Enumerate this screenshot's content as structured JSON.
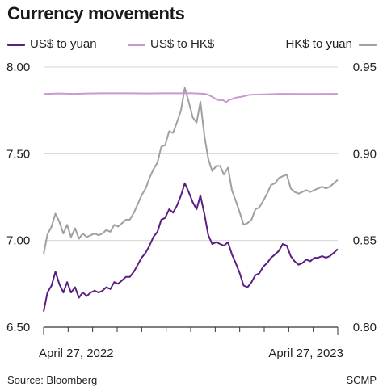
{
  "title": "Currency movements",
  "legend": [
    {
      "label": "US$ to yuan",
      "color": "#5b1f82"
    },
    {
      "label": "US$ to HK$",
      "color": "#c99ad0"
    },
    {
      "label": "HK$ to yuan",
      "color": "#a0a0a0"
    }
  ],
  "footer": {
    "source": "Source: Bloomberg",
    "credit": "SCMP"
  },
  "chart_data": {
    "type": "line",
    "x_labels": [
      "April 27, 2022",
      "April 27, 2023"
    ],
    "left_axis": {
      "ticks": [
        "8.00",
        "7.50",
        "7.00",
        "6.50"
      ],
      "ylim": [
        6.5,
        8.0
      ]
    },
    "right_axis": {
      "ticks": [
        "0.95",
        "0.90",
        "0.85",
        "0.80"
      ],
      "ylim": [
        0.8,
        0.95
      ]
    },
    "series": [
      {
        "name": "US$ to yuan",
        "axis": "left",
        "color": "#5b1f82",
        "x": [
          0,
          0.013,
          0.027,
          0.04,
          0.053,
          0.067,
          0.08,
          0.093,
          0.107,
          0.12,
          0.133,
          0.147,
          0.16,
          0.173,
          0.187,
          0.2,
          0.213,
          0.227,
          0.24,
          0.253,
          0.267,
          0.28,
          0.293,
          0.307,
          0.32,
          0.333,
          0.347,
          0.36,
          0.373,
          0.387,
          0.4,
          0.413,
          0.427,
          0.44,
          0.453,
          0.467,
          0.48,
          0.493,
          0.507,
          0.52,
          0.533,
          0.547,
          0.56,
          0.573,
          0.587,
          0.6,
          0.613,
          0.627,
          0.64,
          0.653,
          0.667,
          0.68,
          0.693,
          0.707,
          0.72,
          0.733,
          0.747,
          0.76,
          0.773,
          0.787,
          0.8,
          0.813,
          0.827,
          0.84,
          0.853,
          0.867,
          0.88,
          0.893,
          0.907,
          0.92,
          0.933,
          0.947,
          0.96,
          0.973,
          0.987,
          1
        ],
        "values": [
          6.59,
          6.7,
          6.74,
          6.82,
          6.75,
          6.7,
          6.76,
          6.7,
          6.73,
          6.67,
          6.7,
          6.68,
          6.7,
          6.71,
          6.7,
          6.71,
          6.73,
          6.72,
          6.76,
          6.75,
          6.77,
          6.79,
          6.79,
          6.82,
          6.86,
          6.9,
          6.93,
          6.97,
          7.02,
          7.05,
          7.12,
          7.13,
          7.18,
          7.16,
          7.2,
          7.26,
          7.33,
          7.28,
          7.22,
          7.18,
          7.26,
          7.15,
          7.03,
          6.98,
          6.99,
          6.98,
          6.97,
          6.99,
          6.92,
          6.87,
          6.81,
          6.74,
          6.73,
          6.76,
          6.8,
          6.81,
          6.85,
          6.87,
          6.9,
          6.92,
          6.94,
          6.98,
          6.97,
          6.91,
          6.88,
          6.86,
          6.87,
          6.89,
          6.88,
          6.9,
          6.9,
          6.91,
          6.9,
          6.91,
          6.93,
          6.95
        ]
      },
      {
        "name": "US$ to HK$",
        "axis": "left",
        "color": "#c99ad0",
        "x": [
          0,
          0.05,
          0.1,
          0.15,
          0.2,
          0.25,
          0.3,
          0.35,
          0.4,
          0.45,
          0.5,
          0.55,
          0.56,
          0.57,
          0.58,
          0.59,
          0.6,
          0.61,
          0.62,
          0.63,
          0.64,
          0.65,
          0.66,
          0.67,
          0.68,
          0.7,
          0.75,
          0.8,
          0.85,
          0.9,
          0.95,
          1
        ],
        "values": [
          7.845,
          7.848,
          7.846,
          7.848,
          7.849,
          7.849,
          7.849,
          7.848,
          7.849,
          7.849,
          7.85,
          7.846,
          7.84,
          7.832,
          7.822,
          7.812,
          7.808,
          7.81,
          7.798,
          7.81,
          7.815,
          7.822,
          7.826,
          7.828,
          7.832,
          7.84,
          7.843,
          7.846,
          7.846,
          7.845,
          7.846,
          7.846
        ]
      },
      {
        "name": "HK$ to yuan",
        "axis": "right",
        "color": "#a0a0a0",
        "x": [
          0,
          0.013,
          0.027,
          0.04,
          0.053,
          0.067,
          0.08,
          0.093,
          0.107,
          0.12,
          0.133,
          0.147,
          0.16,
          0.173,
          0.187,
          0.2,
          0.213,
          0.227,
          0.24,
          0.253,
          0.267,
          0.28,
          0.293,
          0.307,
          0.32,
          0.333,
          0.347,
          0.36,
          0.373,
          0.387,
          0.4,
          0.413,
          0.427,
          0.44,
          0.453,
          0.467,
          0.48,
          0.493,
          0.507,
          0.52,
          0.533,
          0.547,
          0.56,
          0.573,
          0.587,
          0.6,
          0.613,
          0.627,
          0.64,
          0.653,
          0.667,
          0.68,
          0.693,
          0.707,
          0.72,
          0.733,
          0.747,
          0.76,
          0.773,
          0.787,
          0.8,
          0.813,
          0.827,
          0.84,
          0.853,
          0.867,
          0.88,
          0.893,
          0.907,
          0.92,
          0.933,
          0.947,
          0.96,
          0.973,
          0.987,
          1
        ],
        "values": [
          0.8422,
          0.8535,
          0.858,
          0.8655,
          0.861,
          0.854,
          0.859,
          0.852,
          0.857,
          0.851,
          0.854,
          0.852,
          0.853,
          0.854,
          0.853,
          0.854,
          0.856,
          0.855,
          0.859,
          0.858,
          0.86,
          0.862,
          0.862,
          0.866,
          0.871,
          0.876,
          0.88,
          0.886,
          0.891,
          0.895,
          0.904,
          0.905,
          0.913,
          0.912,
          0.918,
          0.925,
          0.938,
          0.93,
          0.921,
          0.918,
          0.93,
          0.91,
          0.897,
          0.89,
          0.893,
          0.893,
          0.888,
          0.892,
          0.879,
          0.873,
          0.866,
          0.859,
          0.86,
          0.862,
          0.868,
          0.869,
          0.873,
          0.877,
          0.882,
          0.883,
          0.886,
          0.887,
          0.888,
          0.88,
          0.878,
          0.877,
          0.878,
          0.879,
          0.878,
          0.879,
          0.88,
          0.881,
          0.88,
          0.881,
          0.883,
          0.885
        ]
      }
    ]
  }
}
